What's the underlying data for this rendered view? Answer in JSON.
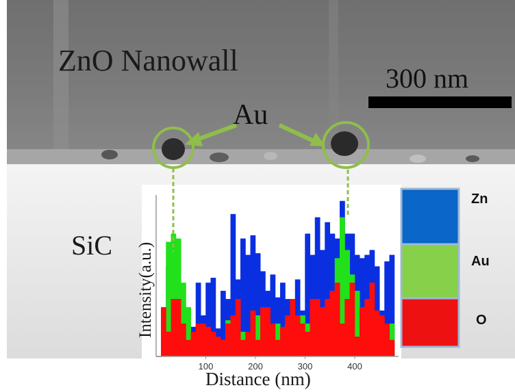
{
  "labels": {
    "region_top": "ZnO Nanowall",
    "region_bottom": "SiC",
    "particle": "Au",
    "scale_bar": "300 nm"
  },
  "chart_data": {
    "type": "area",
    "title": "",
    "xlabel": "Distance (nm)",
    "ylabel": "Intensity(a.u.)",
    "xlim": [
      0,
      480
    ],
    "ylim": [
      0,
      100
    ],
    "x_ticks": [
      100,
      200,
      300,
      400
    ],
    "legend": {
      "placement": "right",
      "entries": [
        "Zn",
        "Au",
        "O"
      ]
    },
    "colors": {
      "Zn": "#0a2fe0",
      "Au": "#22e01a",
      "O": "#ff0d0d"
    },
    "series": [
      {
        "name": "Zn",
        "x": [
          0,
          10,
          20,
          30,
          40,
          50,
          60,
          70,
          80,
          90,
          100,
          110,
          120,
          130,
          140,
          150,
          160,
          170,
          180,
          190,
          200,
          210,
          220,
          230,
          240,
          250,
          260,
          270,
          280,
          290,
          300,
          310,
          320,
          330,
          340,
          350,
          360,
          370,
          380,
          390,
          400,
          410,
          420,
          430,
          440,
          450,
          460,
          470
        ],
        "values": [
          0,
          30,
          55,
          24,
          20,
          20,
          22,
          18,
          45,
          25,
          45,
          48,
          17,
          40,
          35,
          87,
          47,
          72,
          62,
          74,
          63,
          52,
          40,
          50,
          36,
          45,
          35,
          35,
          47,
          28,
          75,
          62,
          85,
          65,
          82,
          75,
          72,
          95,
          75,
          75,
          62,
          60,
          62,
          65,
          55,
          28,
          58,
          62
        ]
      },
      {
        "name": "Au",
        "x": [
          0,
          10,
          20,
          30,
          40,
          50,
          60,
          70,
          80,
          90,
          100,
          110,
          120,
          130,
          140,
          150,
          160,
          170,
          180,
          190,
          200,
          210,
          220,
          230,
          240,
          250,
          260,
          270,
          280,
          290,
          300,
          310,
          320,
          330,
          340,
          350,
          360,
          370,
          380,
          390,
          400,
          410,
          420,
          430,
          440,
          450,
          460,
          470
        ],
        "values": [
          0,
          20,
          70,
          75,
          72,
          45,
          30,
          10,
          10,
          8,
          12,
          10,
          5,
          10,
          22,
          10,
          20,
          15,
          12,
          25,
          25,
          18,
          15,
          8,
          20,
          15,
          20,
          15,
          25,
          25,
          20,
          15,
          15,
          15,
          20,
          25,
          60,
          85,
          65,
          50,
          40,
          20,
          25,
          15,
          15,
          10,
          10,
          20
        ]
      },
      {
        "name": "O",
        "x": [
          0,
          10,
          20,
          30,
          40,
          50,
          60,
          70,
          80,
          90,
          100,
          110,
          120,
          130,
          140,
          150,
          160,
          170,
          180,
          190,
          200,
          210,
          220,
          230,
          240,
          250,
          260,
          270,
          280,
          290,
          300,
          310,
          320,
          330,
          340,
          350,
          360,
          370,
          380,
          390,
          400,
          410,
          420,
          430,
          440,
          450,
          460,
          470
        ],
        "values": [
          0,
          30,
          15,
          35,
          35,
          20,
          10,
          15,
          20,
          20,
          18,
          15,
          12,
          10,
          20,
          25,
          35,
          10,
          15,
          28,
          10,
          30,
          30,
          20,
          10,
          18,
          25,
          35,
          25,
          20,
          15,
          35,
          35,
          30,
          35,
          40,
          45,
          20,
          35,
          45,
          12,
          30,
          35,
          45,
          28,
          25,
          20,
          10
        ]
      }
    ]
  }
}
